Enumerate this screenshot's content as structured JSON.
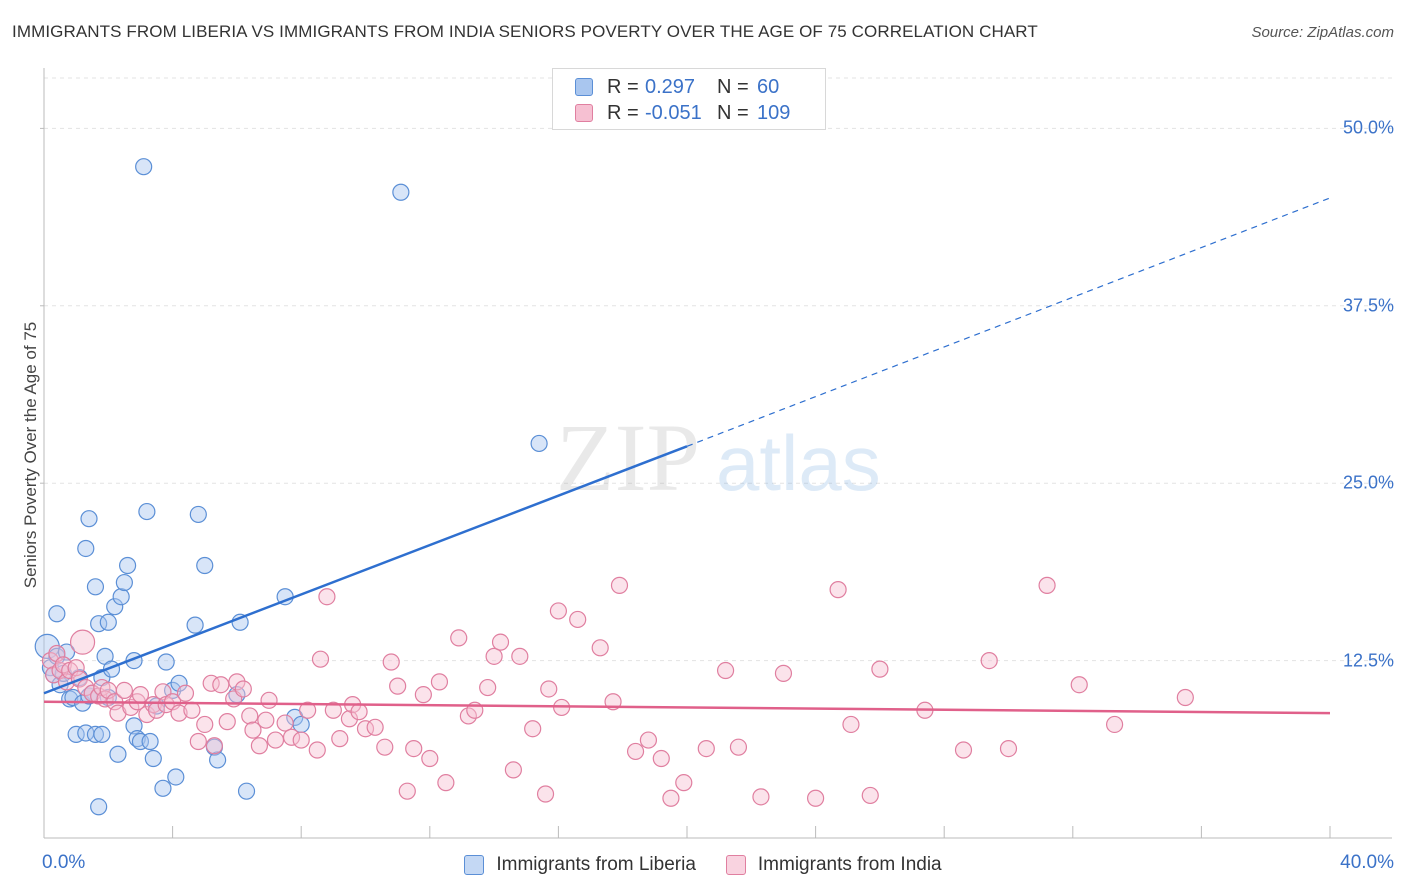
{
  "header": {
    "title": "IMMIGRANTS FROM LIBERIA VS IMMIGRANTS FROM INDIA SENIORS POVERTY OVER THE AGE OF 75 CORRELATION CHART",
    "source": "Source: ZipAtlas.com"
  },
  "watermark": {
    "zip": "ZIP",
    "atlas": "atlas"
  },
  "legend": {
    "rows": [
      {
        "r_label": "R =",
        "r_value": "0.297",
        "n_label": "N =",
        "n_value": "60",
        "color": "#a9c6ef",
        "stroke": "#5b8fd6"
      },
      {
        "r_label": "R =",
        "r_value": "-0.051",
        "n_label": "N =",
        "n_value": "109",
        "color": "#f6c0d2",
        "stroke": "#e07fa0"
      }
    ]
  },
  "chart_data": {
    "type": "scatter",
    "title": "IMMIGRANTS FROM LIBERIA VS IMMIGRANTS FROM INDIA SENIORS POVERTY OVER THE AGE OF 75 CORRELATION CHART",
    "xlabel": "",
    "ylabel": "Seniors Poverty Over the Age of 75",
    "xlim": [
      0,
      40
    ],
    "ylim": [
      0,
      52
    ],
    "x_tick_labels": [
      "0.0%",
      "40.0%"
    ],
    "y_ticks": [
      12.5,
      25.0,
      37.5,
      50.0
    ],
    "y_tick_labels": [
      "12.5%",
      "25.0%",
      "37.5%",
      "50.0%"
    ],
    "grid": true,
    "legend_position": "top-center",
    "series": [
      {
        "name": "Immigrants from Liberia",
        "color": "#5b8fd6",
        "fill": "#a9c6ef",
        "trend": {
          "x0": 0,
          "y0": 10.2,
          "x1": 20,
          "y1": 27.6,
          "dashed_to_x": 40,
          "dashed_to_y": 45.1,
          "color": "#2e6fcf"
        },
        "points": [
          [
            0.1,
            13.5
          ],
          [
            0.2,
            12.0
          ],
          [
            0.3,
            11.5
          ],
          [
            0.4,
            12.8
          ],
          [
            0.4,
            15.8
          ],
          [
            0.5,
            10.8
          ],
          [
            0.6,
            11.6
          ],
          [
            0.7,
            13.1
          ],
          [
            0.8,
            9.8
          ],
          [
            0.9,
            9.9
          ],
          [
            1.0,
            7.3
          ],
          [
            1.1,
            11.3
          ],
          [
            1.2,
            9.5
          ],
          [
            1.3,
            7.4
          ],
          [
            1.3,
            20.4
          ],
          [
            1.4,
            10.0
          ],
          [
            1.4,
            22.5
          ],
          [
            1.5,
            10.2
          ],
          [
            1.6,
            7.3
          ],
          [
            1.6,
            17.7
          ],
          [
            1.7,
            15.1
          ],
          [
            1.7,
            2.2
          ],
          [
            1.8,
            7.3
          ],
          [
            1.8,
            11.3
          ],
          [
            1.9,
            12.8
          ],
          [
            2.0,
            15.2
          ],
          [
            2.0,
            9.9
          ],
          [
            2.1,
            11.9
          ],
          [
            2.2,
            16.3
          ],
          [
            2.3,
            5.9
          ],
          [
            2.4,
            17.0
          ],
          [
            2.5,
            18.0
          ],
          [
            2.6,
            19.2
          ],
          [
            2.8,
            7.9
          ],
          [
            2.8,
            12.5
          ],
          [
            2.9,
            7.0
          ],
          [
            3.0,
            6.8
          ],
          [
            3.1,
            47.3
          ],
          [
            3.2,
            23.0
          ],
          [
            3.3,
            6.8
          ],
          [
            3.4,
            5.6
          ],
          [
            3.5,
            9.3
          ],
          [
            3.7,
            3.5
          ],
          [
            3.8,
            12.4
          ],
          [
            4.0,
            10.4
          ],
          [
            4.1,
            4.3
          ],
          [
            4.2,
            10.9
          ],
          [
            4.7,
            15.0
          ],
          [
            4.8,
            22.8
          ],
          [
            5.0,
            19.2
          ],
          [
            5.3,
            6.4
          ],
          [
            5.4,
            5.5
          ],
          [
            6.0,
            10.1
          ],
          [
            6.1,
            15.2
          ],
          [
            6.3,
            3.3
          ],
          [
            7.5,
            17.0
          ],
          [
            7.8,
            8.5
          ],
          [
            8.0,
            8.0
          ],
          [
            11.1,
            45.5
          ],
          [
            15.4,
            27.8
          ]
        ]
      },
      {
        "name": "Immigrants from India",
        "color": "#e07fa0",
        "fill": "#f6c0d2",
        "trend": {
          "x0": 0,
          "y0": 9.6,
          "x1": 40,
          "y1": 8.8,
          "color": "#e0608a"
        },
        "points": [
          [
            0.2,
            12.5
          ],
          [
            0.3,
            11.5
          ],
          [
            0.4,
            13.0
          ],
          [
            0.5,
            11.8
          ],
          [
            0.6,
            12.2
          ],
          [
            0.7,
            11.0
          ],
          [
            0.8,
            11.8
          ],
          [
            1.0,
            12.0
          ],
          [
            1.1,
            11.2
          ],
          [
            1.2,
            13.8
          ],
          [
            1.3,
            10.6
          ],
          [
            1.5,
            10.2
          ],
          [
            1.7,
            10.0
          ],
          [
            1.8,
            10.6
          ],
          [
            1.9,
            9.8
          ],
          [
            2.0,
            10.4
          ],
          [
            2.2,
            9.6
          ],
          [
            2.3,
            8.8
          ],
          [
            2.5,
            10.4
          ],
          [
            2.7,
            9.2
          ],
          [
            2.9,
            9.6
          ],
          [
            3.0,
            10.1
          ],
          [
            3.2,
            8.7
          ],
          [
            3.4,
            9.4
          ],
          [
            3.5,
            9.0
          ],
          [
            3.7,
            10.3
          ],
          [
            3.8,
            9.4
          ],
          [
            4.0,
            9.6
          ],
          [
            4.2,
            8.8
          ],
          [
            4.4,
            10.2
          ],
          [
            4.6,
            9.0
          ],
          [
            4.8,
            6.8
          ],
          [
            5.0,
            8.0
          ],
          [
            5.2,
            10.9
          ],
          [
            5.3,
            6.5
          ],
          [
            5.5,
            10.8
          ],
          [
            5.7,
            8.2
          ],
          [
            5.9,
            9.8
          ],
          [
            6.0,
            11.0
          ],
          [
            6.2,
            10.5
          ],
          [
            6.4,
            8.6
          ],
          [
            6.5,
            7.6
          ],
          [
            6.7,
            6.5
          ],
          [
            6.9,
            8.3
          ],
          [
            7.0,
            9.7
          ],
          [
            7.2,
            6.9
          ],
          [
            7.5,
            8.1
          ],
          [
            7.7,
            7.1
          ],
          [
            8.0,
            6.9
          ],
          [
            8.2,
            9.0
          ],
          [
            8.5,
            6.2
          ],
          [
            8.6,
            12.6
          ],
          [
            8.8,
            17.0
          ],
          [
            9.0,
            9.0
          ],
          [
            9.2,
            7.0
          ],
          [
            9.5,
            8.4
          ],
          [
            9.6,
            9.4
          ],
          [
            9.8,
            8.9
          ],
          [
            10.0,
            7.7
          ],
          [
            10.3,
            7.8
          ],
          [
            10.6,
            6.4
          ],
          [
            10.8,
            12.4
          ],
          [
            11.0,
            10.7
          ],
          [
            11.3,
            3.3
          ],
          [
            11.5,
            6.3
          ],
          [
            11.8,
            10.1
          ],
          [
            12.0,
            5.6
          ],
          [
            12.3,
            11.0
          ],
          [
            12.5,
            3.9
          ],
          [
            12.9,
            14.1
          ],
          [
            13.2,
            8.6
          ],
          [
            13.4,
            9.0
          ],
          [
            13.8,
            10.6
          ],
          [
            14.0,
            12.8
          ],
          [
            14.2,
            13.8
          ],
          [
            14.6,
            4.8
          ],
          [
            14.8,
            12.8
          ],
          [
            15.2,
            7.7
          ],
          [
            15.6,
            3.1
          ],
          [
            15.7,
            10.5
          ],
          [
            16.0,
            16.0
          ],
          [
            16.1,
            9.2
          ],
          [
            16.6,
            15.4
          ],
          [
            17.3,
            13.4
          ],
          [
            17.7,
            9.6
          ],
          [
            17.9,
            17.8
          ],
          [
            18.4,
            6.1
          ],
          [
            18.8,
            6.9
          ],
          [
            19.2,
            5.6
          ],
          [
            19.5,
            2.8
          ],
          [
            19.9,
            3.9
          ],
          [
            20.6,
            6.3
          ],
          [
            21.2,
            11.8
          ],
          [
            21.6,
            6.4
          ],
          [
            22.3,
            2.9
          ],
          [
            23.0,
            11.6
          ],
          [
            24.0,
            2.8
          ],
          [
            24.7,
            17.5
          ],
          [
            25.1,
            8.0
          ],
          [
            25.7,
            3.0
          ],
          [
            26.0,
            11.9
          ],
          [
            27.4,
            9.0
          ],
          [
            28.6,
            6.2
          ],
          [
            29.4,
            12.5
          ],
          [
            30.0,
            6.3
          ],
          [
            31.2,
            17.8
          ],
          [
            32.2,
            10.8
          ],
          [
            33.3,
            8.0
          ],
          [
            35.5,
            9.9
          ]
        ]
      }
    ]
  },
  "axes": {
    "x_left_label": "0.0%",
    "x_right_label": "40.0%"
  }
}
